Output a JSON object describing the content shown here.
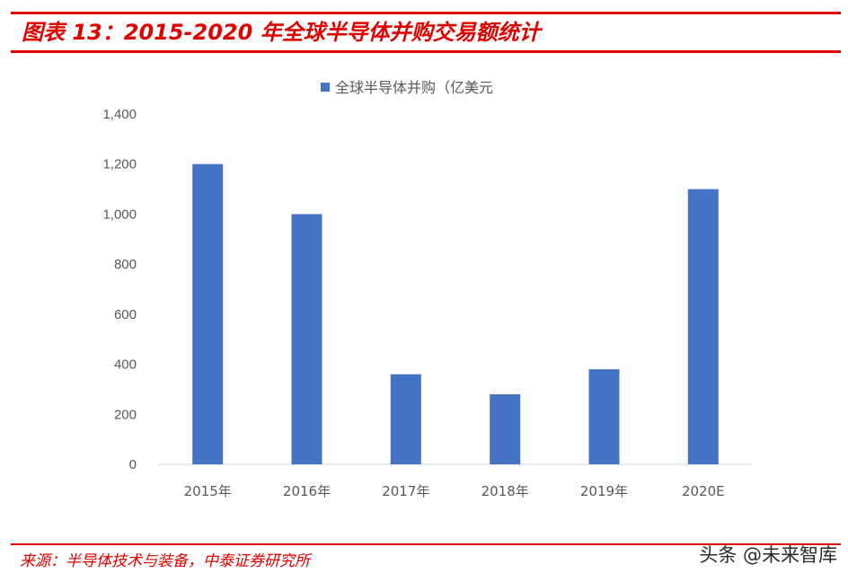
{
  "header": {
    "title": "图表 13：2015-2020 年全球半导体并购交易额统计"
  },
  "footer": {
    "source": "来源：半导体技术与装备，中泰证券研究所",
    "watermark": "头条 @未来智库"
  },
  "colors": {
    "accent": "#e00000",
    "bar": "#4472c4",
    "axis_text": "#595959",
    "axis_line": "#d9d9d9"
  },
  "chart_data": {
    "type": "bar",
    "categories": [
      "2015年",
      "2016年",
      "2017年",
      "2018年",
      "2019年",
      "2020E"
    ],
    "series": [
      {
        "name": "全球半导体并购（亿美元",
        "values": [
          1200,
          1000,
          360,
          280,
          380,
          1100
        ]
      }
    ],
    "ylim": [
      0,
      1400
    ],
    "yticks": [
      0,
      200,
      400,
      600,
      800,
      1000,
      1200,
      1400
    ],
    "ytick_labels": [
      "0",
      "200",
      "400",
      "600",
      "800",
      "1,000",
      "1,200",
      "1,400"
    ],
    "grid": false,
    "legend_position": "top-center"
  }
}
